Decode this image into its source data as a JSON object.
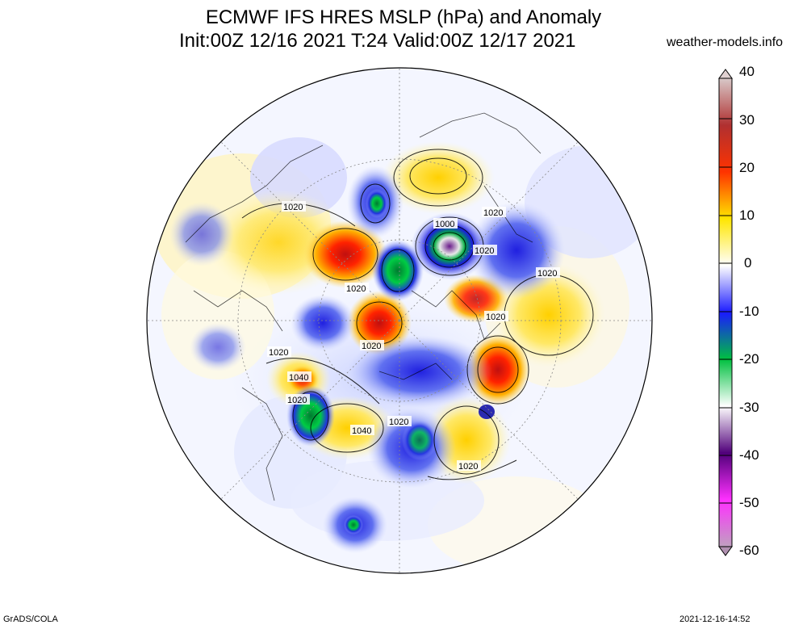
{
  "header": {
    "title_line1": "ECMWF IFS HRES MSLP (hPa) and Anomaly",
    "title_line2": "Init:00Z 12/16 2021 T:24 Valid:00Z 12/17 2021",
    "site": "weather-models.info"
  },
  "footer": {
    "left": "GrADS/COLA",
    "right": "2021-12-16-14:52"
  },
  "colorbar": {
    "labels": [
      "40",
      "30",
      "20",
      "10",
      "0",
      "-10",
      "-20",
      "-30",
      "-40",
      "-50",
      "-60"
    ],
    "colors": {
      "40": "#c9a0a0",
      "30": "#b22222",
      "20": "#ff2a00",
      "10": "#ffee00",
      "0": "#ffffff",
      "-10": "#1a1aff",
      "-20": "#00cc44",
      "-30": "#f0f0f0",
      "-40": "#5a007a",
      "-50": "#ff33ff",
      "-60": "#b090b0"
    }
  },
  "map": {
    "isobar_labels": [
      "1020",
      "1000",
      "1020",
      "1020",
      "1020",
      "1020",
      "1020",
      "1020",
      "1020",
      "1040",
      "1020",
      "1040",
      "1020",
      "1020"
    ]
  }
}
